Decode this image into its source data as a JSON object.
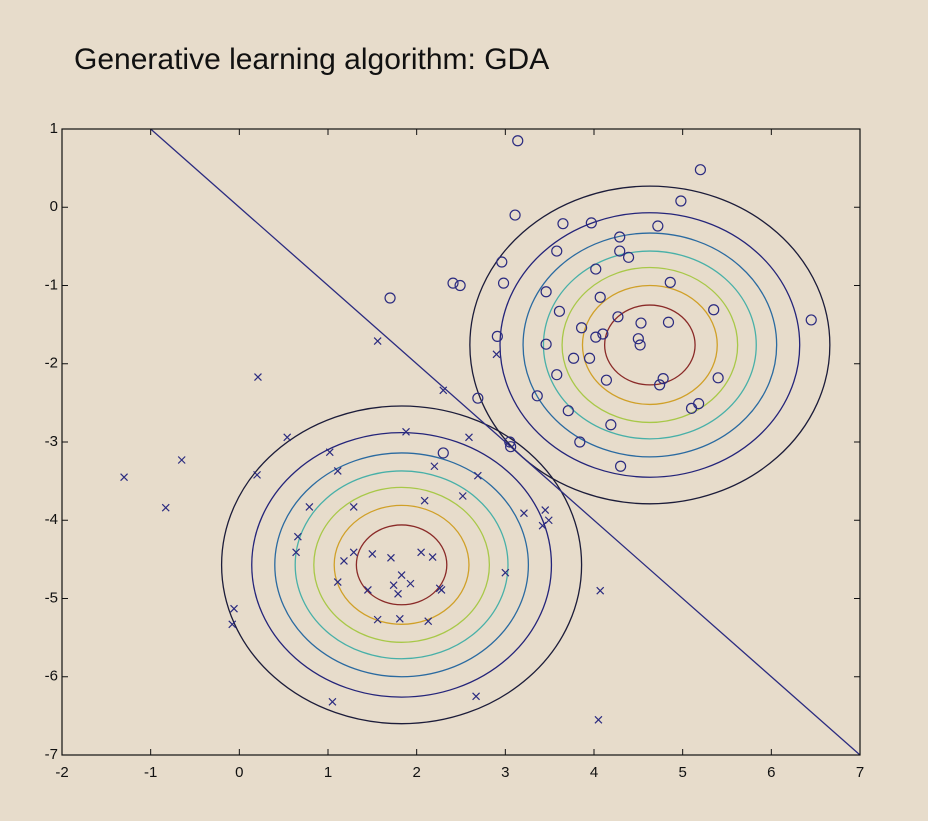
{
  "chart_data": {
    "type": "scatter",
    "title": "Generative learning algorithm: GDA",
    "xlim": [
      -2,
      7
    ],
    "ylim": [
      -7,
      1
    ],
    "xticks": [
      -2,
      -1,
      0,
      1,
      2,
      3,
      4,
      5,
      6,
      7
    ],
    "yticks": [
      1,
      0,
      -1,
      -2,
      -3,
      -4,
      -5,
      -6,
      -7
    ],
    "series": [
      {
        "marker": "x",
        "color": "#2b2b80",
        "x": [
          -1.3,
          -0.83,
          -0.65,
          0.2,
          0.21,
          0.54,
          1.02,
          1.11,
          1.29,
          1.56,
          1.88,
          2.2,
          2.3,
          2.59,
          2.52,
          2.69,
          2.9,
          3.21,
          3.45,
          3.49,
          3.42,
          2.09,
          0.79,
          0.66,
          0.64,
          1.18,
          1.29,
          1.5,
          1.71,
          2.05,
          2.18,
          1.11,
          1.45,
          1.74,
          1.83,
          1.93,
          1.79,
          2.26,
          2.28,
          3.0,
          1.56,
          1.81,
          2.13,
          -0.06,
          -0.08,
          1.05,
          2.67,
          4.07,
          4.05
        ],
        "values": [
          -3.45,
          -3.84,
          -3.23,
          -3.42,
          -2.17,
          -2.94,
          -3.13,
          -3.37,
          -3.83,
          -1.71,
          -2.87,
          -3.31,
          -2.34,
          -2.94,
          -3.69,
          -3.43,
          -1.88,
          -3.91,
          -3.87,
          -4.0,
          -4.07,
          -3.75,
          -3.83,
          -4.21,
          -4.41,
          -4.52,
          -4.41,
          -4.43,
          -4.48,
          -4.41,
          -4.47,
          -4.79,
          -4.89,
          -4.83,
          -4.7,
          -4.81,
          -4.94,
          -4.87,
          -4.89,
          -4.67,
          -5.27,
          -5.26,
          -5.29,
          -5.13,
          -5.33,
          -6.32,
          -6.25,
          -4.9,
          -6.55
        ]
      },
      {
        "marker": "o",
        "color": "#2b2b80",
        "x": [
          3.14,
          5.2,
          4.98,
          3.11,
          3.65,
          3.97,
          4.72,
          4.29,
          4.29,
          3.58,
          4.39,
          2.96,
          4.02,
          4.86,
          2.98,
          2.41,
          2.49,
          1.7,
          3.46,
          4.07,
          3.61,
          4.27,
          5.35,
          4.53,
          4.84,
          3.86,
          4.1,
          4.02,
          2.91,
          4.5,
          4.52,
          3.46,
          3.77,
          3.95,
          6.45,
          3.58,
          4.14,
          4.78,
          4.74,
          5.4,
          5.18,
          5.1,
          3.36,
          3.71,
          4.19,
          2.69,
          3.06,
          3.05,
          3.84,
          2.3,
          4.3
        ],
        "values": [
          0.85,
          0.48,
          0.08,
          -0.1,
          -0.21,
          -0.2,
          -0.24,
          -0.38,
          -0.56,
          -0.56,
          -0.64,
          -0.7,
          -0.79,
          -0.96,
          -0.97,
          -0.97,
          -1.0,
          -1.16,
          -1.08,
          -1.15,
          -1.33,
          -1.4,
          -1.31,
          -1.48,
          -1.47,
          -1.54,
          -1.62,
          -1.66,
          -1.65,
          -1.68,
          -1.76,
          -1.75,
          -1.93,
          -1.93,
          -1.44,
          -2.14,
          -2.21,
          -2.19,
          -2.27,
          -2.18,
          -2.51,
          -2.57,
          -2.41,
          -2.6,
          -2.78,
          -2.44,
          -3.06,
          -3.0,
          -3.0,
          -3.14,
          -3.31
        ]
      }
    ],
    "contours": [
      {
        "center_x": 1.83,
        "center_y": -4.57
      },
      {
        "center_x": 4.63,
        "center_y": -1.76
      }
    ],
    "radii": [
      2.03,
      1.69,
      1.43,
      1.2,
      0.99,
      0.76,
      0.51
    ],
    "contour_colors": [
      "#1c1c3a",
      "#24247a",
      "#2a6aa0",
      "#48b0a8",
      "#a8c848",
      "#d0a028",
      "#8a2a28"
    ],
    "decision_boundary": {
      "x": [
        -1,
        7
      ],
      "values": [
        1,
        -7
      ],
      "color": "#2b2b80"
    }
  }
}
